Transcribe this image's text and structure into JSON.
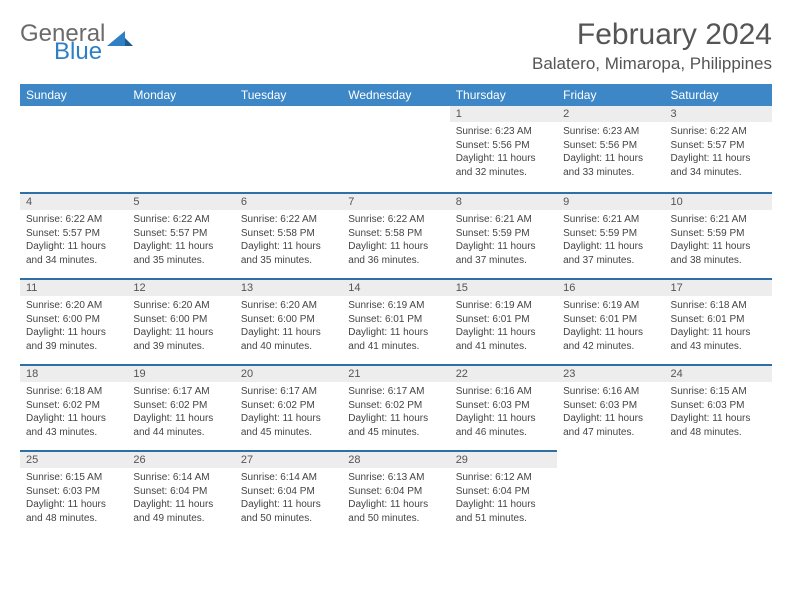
{
  "brand": {
    "name1": "General",
    "name2": "Blue",
    "tri_color": "#2f7fc4"
  },
  "title": "February 2024",
  "location": "Balatero, Mimaropa, Philippines",
  "colors": {
    "header_bg": "#3d87c7",
    "header_fg": "#ffffff",
    "row_divider": "#2f6fa8",
    "daynum_bg": "#ededed",
    "text": "#444444",
    "title_color": "#555555"
  },
  "weekdays": [
    "Sunday",
    "Monday",
    "Tuesday",
    "Wednesday",
    "Thursday",
    "Friday",
    "Saturday"
  ],
  "layout": {
    "first_weekday_index": 4,
    "days_in_month": 29
  },
  "days": {
    "1": {
      "sunrise": "6:23 AM",
      "sunset": "5:56 PM",
      "daylight": "11 hours and 32 minutes."
    },
    "2": {
      "sunrise": "6:23 AM",
      "sunset": "5:56 PM",
      "daylight": "11 hours and 33 minutes."
    },
    "3": {
      "sunrise": "6:22 AM",
      "sunset": "5:57 PM",
      "daylight": "11 hours and 34 minutes."
    },
    "4": {
      "sunrise": "6:22 AM",
      "sunset": "5:57 PM",
      "daylight": "11 hours and 34 minutes."
    },
    "5": {
      "sunrise": "6:22 AM",
      "sunset": "5:57 PM",
      "daylight": "11 hours and 35 minutes."
    },
    "6": {
      "sunrise": "6:22 AM",
      "sunset": "5:58 PM",
      "daylight": "11 hours and 35 minutes."
    },
    "7": {
      "sunrise": "6:22 AM",
      "sunset": "5:58 PM",
      "daylight": "11 hours and 36 minutes."
    },
    "8": {
      "sunrise": "6:21 AM",
      "sunset": "5:59 PM",
      "daylight": "11 hours and 37 minutes."
    },
    "9": {
      "sunrise": "6:21 AM",
      "sunset": "5:59 PM",
      "daylight": "11 hours and 37 minutes."
    },
    "10": {
      "sunrise": "6:21 AM",
      "sunset": "5:59 PM",
      "daylight": "11 hours and 38 minutes."
    },
    "11": {
      "sunrise": "6:20 AM",
      "sunset": "6:00 PM",
      "daylight": "11 hours and 39 minutes."
    },
    "12": {
      "sunrise": "6:20 AM",
      "sunset": "6:00 PM",
      "daylight": "11 hours and 39 minutes."
    },
    "13": {
      "sunrise": "6:20 AM",
      "sunset": "6:00 PM",
      "daylight": "11 hours and 40 minutes."
    },
    "14": {
      "sunrise": "6:19 AM",
      "sunset": "6:01 PM",
      "daylight": "11 hours and 41 minutes."
    },
    "15": {
      "sunrise": "6:19 AM",
      "sunset": "6:01 PM",
      "daylight": "11 hours and 41 minutes."
    },
    "16": {
      "sunrise": "6:19 AM",
      "sunset": "6:01 PM",
      "daylight": "11 hours and 42 minutes."
    },
    "17": {
      "sunrise": "6:18 AM",
      "sunset": "6:01 PM",
      "daylight": "11 hours and 43 minutes."
    },
    "18": {
      "sunrise": "6:18 AM",
      "sunset": "6:02 PM",
      "daylight": "11 hours and 43 minutes."
    },
    "19": {
      "sunrise": "6:17 AM",
      "sunset": "6:02 PM",
      "daylight": "11 hours and 44 minutes."
    },
    "20": {
      "sunrise": "6:17 AM",
      "sunset": "6:02 PM",
      "daylight": "11 hours and 45 minutes."
    },
    "21": {
      "sunrise": "6:17 AM",
      "sunset": "6:02 PM",
      "daylight": "11 hours and 45 minutes."
    },
    "22": {
      "sunrise": "6:16 AM",
      "sunset": "6:03 PM",
      "daylight": "11 hours and 46 minutes."
    },
    "23": {
      "sunrise": "6:16 AM",
      "sunset": "6:03 PM",
      "daylight": "11 hours and 47 minutes."
    },
    "24": {
      "sunrise": "6:15 AM",
      "sunset": "6:03 PM",
      "daylight": "11 hours and 48 minutes."
    },
    "25": {
      "sunrise": "6:15 AM",
      "sunset": "6:03 PM",
      "daylight": "11 hours and 48 minutes."
    },
    "26": {
      "sunrise": "6:14 AM",
      "sunset": "6:04 PM",
      "daylight": "11 hours and 49 minutes."
    },
    "27": {
      "sunrise": "6:14 AM",
      "sunset": "6:04 PM",
      "daylight": "11 hours and 50 minutes."
    },
    "28": {
      "sunrise": "6:13 AM",
      "sunset": "6:04 PM",
      "daylight": "11 hours and 50 minutes."
    },
    "29": {
      "sunrise": "6:12 AM",
      "sunset": "6:04 PM",
      "daylight": "11 hours and 51 minutes."
    }
  },
  "labels": {
    "sunrise": "Sunrise:",
    "sunset": "Sunset:",
    "daylight": "Daylight:"
  }
}
